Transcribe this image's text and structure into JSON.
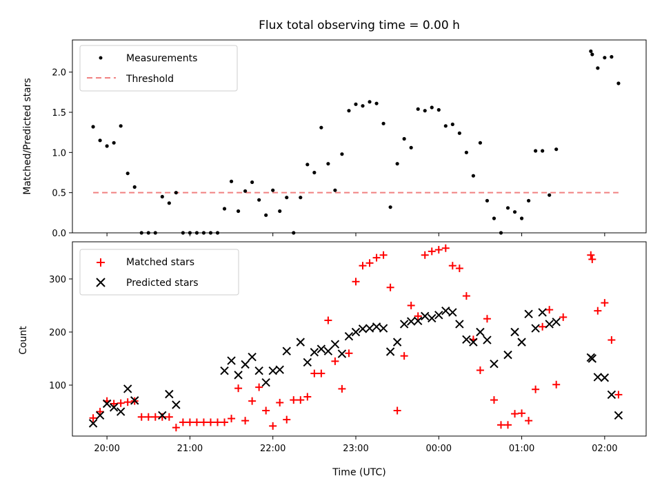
{
  "chart_data": [
    {
      "type": "scatter",
      "title": "Flux total observing time = 0.00 h",
      "ylabel": "Matched/Predicted stars",
      "ylim": [
        0,
        2.4
      ],
      "yticks": [
        0.0,
        0.5,
        1.0,
        1.5,
        2.0
      ],
      "ytick_labels": [
        "0.0",
        "0.5",
        "1.0",
        "1.5",
        "2.0"
      ],
      "legend": {
        "position": "top-left",
        "entries": [
          "Measurements",
          "Threshold"
        ]
      },
      "colors": {
        "measurements": "#000000",
        "threshold": "#f08080"
      },
      "threshold": {
        "value": 0.5,
        "x_range": [
          "19:50",
          "02:10"
        ]
      },
      "series": [
        {
          "name": "Measurements",
          "points": [
            [
              "19:50",
              1.32
            ],
            [
              "19:55",
              1.15
            ],
            [
              "20:00",
              1.08
            ],
            [
              "20:05",
              1.12
            ],
            [
              "20:10",
              1.33
            ],
            [
              "20:15",
              0.74
            ],
            [
              "20:20",
              0.57
            ],
            [
              "20:25",
              0.0
            ],
            [
              "20:30",
              0.0
            ],
            [
              "20:35",
              0.0
            ],
            [
              "20:40",
              0.45
            ],
            [
              "20:45",
              0.37
            ],
            [
              "20:50",
              0.5
            ],
            [
              "20:55",
              0.0
            ],
            [
              "21:00",
              0.0
            ],
            [
              "21:05",
              0.0
            ],
            [
              "21:10",
              0.0
            ],
            [
              "21:15",
              0.0
            ],
            [
              "21:20",
              0.0
            ],
            [
              "21:25",
              0.3
            ],
            [
              "21:30",
              0.64
            ],
            [
              "21:35",
              0.27
            ],
            [
              "21:40",
              0.52
            ],
            [
              "21:45",
              0.63
            ],
            [
              "21:50",
              0.41
            ],
            [
              "21:55",
              0.22
            ],
            [
              "22:00",
              0.53
            ],
            [
              "22:05",
              0.27
            ],
            [
              "22:10",
              0.44
            ],
            [
              "22:15",
              0.0
            ],
            [
              "22:20",
              0.44
            ],
            [
              "22:25",
              0.85
            ],
            [
              "22:30",
              0.75
            ],
            [
              "22:35",
              1.31
            ],
            [
              "22:40",
              0.86
            ],
            [
              "22:45",
              0.53
            ],
            [
              "22:50",
              0.98
            ],
            [
              "22:55",
              1.52
            ],
            [
              "23:00",
              1.6
            ],
            [
              "23:05",
              1.58
            ],
            [
              "23:10",
              1.63
            ],
            [
              "23:15",
              1.61
            ],
            [
              "23:20",
              1.36
            ],
            [
              "23:25",
              0.32
            ],
            [
              "23:30",
              0.86
            ],
            [
              "23:35",
              1.17
            ],
            [
              "23:40",
              1.06
            ],
            [
              "23:45",
              1.54
            ],
            [
              "23:50",
              1.52
            ],
            [
              "23:55",
              1.56
            ],
            [
              "00:00",
              1.53
            ],
            [
              "00:05",
              1.33
            ],
            [
              "00:10",
              1.35
            ],
            [
              "00:15",
              1.24
            ],
            [
              "00:20",
              1.0
            ],
            [
              "00:25",
              0.71
            ],
            [
              "00:30",
              1.12
            ],
            [
              "00:35",
              0.4
            ],
            [
              "00:40",
              0.18
            ],
            [
              "00:45",
              0.0
            ],
            [
              "00:50",
              0.31
            ],
            [
              "00:55",
              0.26
            ],
            [
              "01:00",
              0.18
            ],
            [
              "01:05",
              0.4
            ],
            [
              "01:10",
              1.02
            ],
            [
              "01:15",
              1.02
            ],
            [
              "01:20",
              0.47
            ],
            [
              "01:25",
              1.04
            ],
            [
              "01:50",
              2.26
            ],
            [
              "01:51",
              2.22
            ],
            [
              "01:55",
              2.05
            ],
            [
              "02:00",
              2.18
            ],
            [
              "02:05",
              2.19
            ],
            [
              "02:10",
              1.86
            ]
          ]
        }
      ]
    },
    {
      "type": "scatter",
      "xlabel": "Time (UTC)",
      "ylabel": "Count",
      "ylim": [
        4,
        370
      ],
      "yticks": [
        100,
        200,
        300
      ],
      "ytick_labels": [
        "100",
        "200",
        "300"
      ],
      "x_range": [
        "19:35",
        "02:30"
      ],
      "xticks": [
        "20:00",
        "21:00",
        "22:00",
        "23:00",
        "00:00",
        "01:00",
        "02:00"
      ],
      "legend": {
        "position": "top-left",
        "entries": [
          "Matched stars",
          "Predicted stars"
        ]
      },
      "colors": {
        "matched": "#ff0000",
        "predicted": "#000000"
      },
      "series": [
        {
          "name": "Matched stars",
          "points": [
            [
              "19:50",
              38
            ],
            [
              "19:55",
              50
            ],
            [
              "20:00",
              70
            ],
            [
              "20:05",
              65
            ],
            [
              "20:10",
              66
            ],
            [
              "20:15",
              68
            ],
            [
              "20:20",
              70
            ],
            [
              "20:25",
              40
            ],
            [
              "20:30",
              40
            ],
            [
              "20:35",
              40
            ],
            [
              "20:40",
              40
            ],
            [
              "20:45",
              40
            ],
            [
              "20:50",
              20
            ],
            [
              "20:55",
              30
            ],
            [
              "21:00",
              30
            ],
            [
              "21:05",
              30
            ],
            [
              "21:10",
              30
            ],
            [
              "21:15",
              30
            ],
            [
              "21:20",
              30
            ],
            [
              "21:25",
              30
            ],
            [
              "21:30",
              37
            ],
            [
              "21:35",
              94
            ],
            [
              "21:40",
              33
            ],
            [
              "21:45",
              70
            ],
            [
              "21:50",
              96
            ],
            [
              "21:55",
              52
            ],
            [
              "22:00",
              23
            ],
            [
              "22:05",
              67
            ],
            [
              "22:10",
              35
            ],
            [
              "22:15",
              72
            ],
            [
              "22:20",
              72
            ],
            [
              "22:25",
              78
            ],
            [
              "22:30",
              122
            ],
            [
              "22:35",
              122
            ],
            [
              "22:40",
              222
            ],
            [
              "22:45",
              145
            ],
            [
              "22:50",
              93
            ],
            [
              "22:55",
              160
            ],
            [
              "23:00",
              295
            ],
            [
              "23:05",
              325
            ],
            [
              "23:10",
              330
            ],
            [
              "23:15",
              340
            ],
            [
              "23:20",
              345
            ],
            [
              "23:25",
              284
            ],
            [
              "23:30",
              52
            ],
            [
              "23:35",
              155
            ],
            [
              "23:40",
              250
            ],
            [
              "23:45",
              230
            ],
            [
              "23:50",
              345
            ],
            [
              "23:55",
              352
            ],
            [
              "00:00",
              355
            ],
            [
              "00:05",
              358
            ],
            [
              "00:10",
              325
            ],
            [
              "00:15",
              320
            ],
            [
              "00:20",
              268
            ],
            [
              "00:25",
              186
            ],
            [
              "00:30",
              128
            ],
            [
              "00:35",
              225
            ],
            [
              "00:40",
              72
            ],
            [
              "00:45",
              25
            ],
            [
              "00:50",
              25
            ],
            [
              "00:55",
              46
            ],
            [
              "01:00",
              47
            ],
            [
              "01:05",
              33
            ],
            [
              "01:10",
              92
            ],
            [
              "01:15",
              210
            ],
            [
              "01:20",
              242
            ],
            [
              "01:25",
              101
            ],
            [
              "01:30",
              228
            ],
            [
              "01:50",
              345
            ],
            [
              "01:51",
              337
            ],
            [
              "01:55",
              240
            ],
            [
              "02:00",
              255
            ],
            [
              "02:05",
              185
            ],
            [
              "02:10",
              82
            ]
          ]
        },
        {
          "name": "Predicted stars",
          "points": [
            [
              "19:50",
              28
            ],
            [
              "19:55",
              43
            ],
            [
              "20:00",
              65
            ],
            [
              "20:05",
              58
            ],
            [
              "20:10",
              50
            ],
            [
              "20:15",
              93
            ],
            [
              "20:20",
              71
            ],
            [
              "20:40",
              43
            ],
            [
              "20:45",
              83
            ],
            [
              "20:50",
              63
            ],
            [
              "21:25",
              127
            ],
            [
              "21:30",
              146
            ],
            [
              "21:35",
              119
            ],
            [
              "21:40",
              139
            ],
            [
              "21:45",
              153
            ],
            [
              "21:50",
              127
            ],
            [
              "21:55",
              105
            ],
            [
              "22:00",
              127
            ],
            [
              "22:05",
              129
            ],
            [
              "22:10",
              164
            ],
            [
              "22:20",
              181
            ],
            [
              "22:25",
              143
            ],
            [
              "22:30",
              162
            ],
            [
              "22:35",
              168
            ],
            [
              "22:40",
              164
            ],
            [
              "22:45",
              177
            ],
            [
              "22:50",
              159
            ],
            [
              "22:55",
              192
            ],
            [
              "23:00",
              200
            ],
            [
              "23:05",
              206
            ],
            [
              "23:10",
              207
            ],
            [
              "23:15",
              210
            ],
            [
              "23:20",
              207
            ],
            [
              "23:25",
              163
            ],
            [
              "23:30",
              181
            ],
            [
              "23:35",
              215
            ],
            [
              "23:40",
              220
            ],
            [
              "23:45",
              221
            ],
            [
              "23:50",
              230
            ],
            [
              "23:55",
              226
            ],
            [
              "00:00",
              232
            ],
            [
              "00:05",
              240
            ],
            [
              "00:10",
              237
            ],
            [
              "00:15",
              215
            ],
            [
              "00:20",
              186
            ],
            [
              "00:25",
              181
            ],
            [
              "00:30",
              200
            ],
            [
              "00:35",
              185
            ],
            [
              "00:40",
              140
            ],
            [
              "00:50",
              157
            ],
            [
              "00:55",
              200
            ],
            [
              "01:00",
              181
            ],
            [
              "01:05",
              234
            ],
            [
              "01:10",
              207
            ],
            [
              "01:15",
              237
            ],
            [
              "01:20",
              215
            ],
            [
              "01:25",
              219
            ],
            [
              "01:50",
              152
            ],
            [
              "01:51",
              150
            ],
            [
              "01:55",
              115
            ],
            [
              "02:00",
              114
            ],
            [
              "02:05",
              82
            ],
            [
              "02:10",
              43
            ]
          ]
        }
      ]
    }
  ]
}
